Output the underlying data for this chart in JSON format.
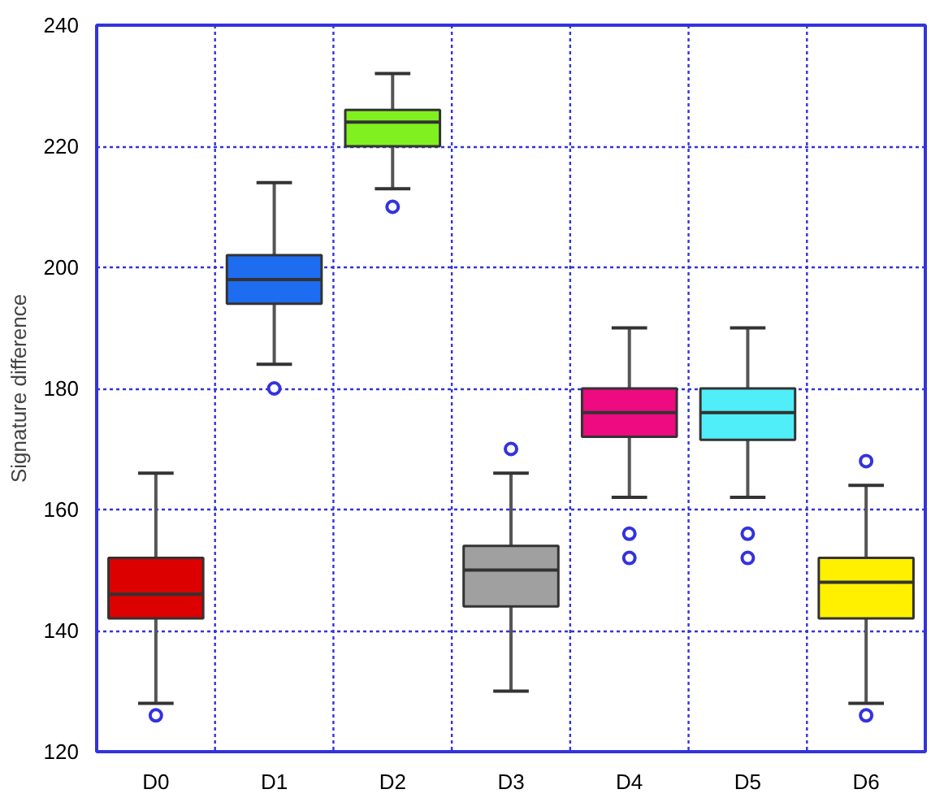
{
  "chart_data": {
    "type": "box",
    "ylabel": "Signature difference",
    "categories": [
      "D0",
      "D1",
      "D2",
      "D3",
      "D4",
      "D5",
      "D6"
    ],
    "colors": [
      "#dd0000",
      "#1e6cf0",
      "#80f020",
      "#a0a0a0",
      "#ee0a80",
      "#50eef8",
      "#fff000"
    ],
    "boxes": [
      {
        "low": 128,
        "q1": 142,
        "median": 146,
        "q3": 152,
        "high": 166,
        "outliers": [
          126
        ]
      },
      {
        "low": 184,
        "q1": 194,
        "median": 198,
        "q3": 202,
        "high": 214,
        "outliers": [
          180
        ]
      },
      {
        "low": 213,
        "q1": 220,
        "median": 224,
        "q3": 226,
        "high": 232,
        "outliers": [
          210
        ]
      },
      {
        "low": 130,
        "q1": 144,
        "median": 150,
        "q3": 154,
        "high": 166,
        "outliers": [
          170
        ]
      },
      {
        "low": 162,
        "q1": 172,
        "median": 176,
        "q3": 180,
        "high": 190,
        "outliers": [
          156,
          152
        ]
      },
      {
        "low": 162,
        "q1": 171.5,
        "median": 176,
        "q3": 180,
        "high": 190,
        "outliers": [
          156,
          152
        ]
      },
      {
        "low": 128,
        "q1": 142,
        "median": 148,
        "q3": 152,
        "high": 164,
        "outliers": [
          168,
          126
        ]
      }
    ],
    "ylim": [
      120,
      240
    ],
    "yticks": [
      120,
      140,
      160,
      180,
      200,
      220,
      240
    ],
    "grid": true
  }
}
